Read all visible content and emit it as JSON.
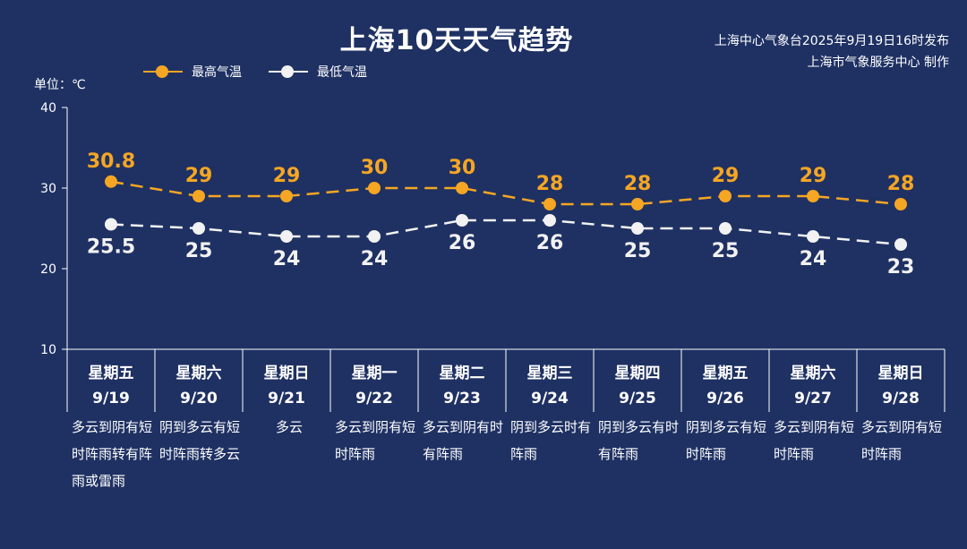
{
  "title": "上海10天天气趋势",
  "publisher": {
    "line1": "上海中心气象台2025年9月19日16时发布",
    "line2": "上海市气象服务中心 制作"
  },
  "unit_label": "单位：℃",
  "colors": {
    "high": "#f5a623",
    "low": "#f2f2f2",
    "background": "#1f3163"
  },
  "chart_data": {
    "type": "line",
    "title": "上海10天天气趋势",
    "ylabel": "单位：℃",
    "ylim": [
      10,
      40
    ],
    "yticks": [
      10,
      20,
      30,
      40
    ],
    "categories": [
      "9/19",
      "9/20",
      "9/21",
      "9/22",
      "9/23",
      "9/24",
      "9/25",
      "9/26",
      "9/27",
      "9/28"
    ],
    "weekdays": [
      "星期五",
      "星期六",
      "星期日",
      "星期一",
      "星期二",
      "星期三",
      "星期四",
      "星期五",
      "星期六",
      "星期日"
    ],
    "series": [
      {
        "name": "最高气温",
        "values": [
          30.8,
          29,
          29,
          30,
          30,
          28,
          28,
          29,
          29,
          28
        ],
        "labels": [
          "30.8",
          "29",
          "29",
          "30",
          "30",
          "28",
          "28",
          "29",
          "29",
          "28"
        ]
      },
      {
        "name": "最低气温",
        "values": [
          25.5,
          25,
          24,
          24,
          26,
          26,
          25,
          25,
          24,
          23
        ],
        "labels": [
          "25.5",
          "25",
          "24",
          "24",
          "26",
          "26",
          "25",
          "25",
          "24",
          "23"
        ]
      }
    ],
    "legend": "top-left",
    "grid": false
  },
  "descriptions": [
    "多云到阴有短时阵雨转有阵雨或雷雨",
    "阴到多云有短时阵雨转多云",
    "多云",
    "多云到阴有短时阵雨",
    "多云到阴有时有阵雨",
    "阴到多云时有阵雨",
    "阴到多云有时有阵雨",
    "阴到多云有短时阵雨",
    "多云到阴有短时阵雨",
    "多云到阴有短时阵雨"
  ]
}
